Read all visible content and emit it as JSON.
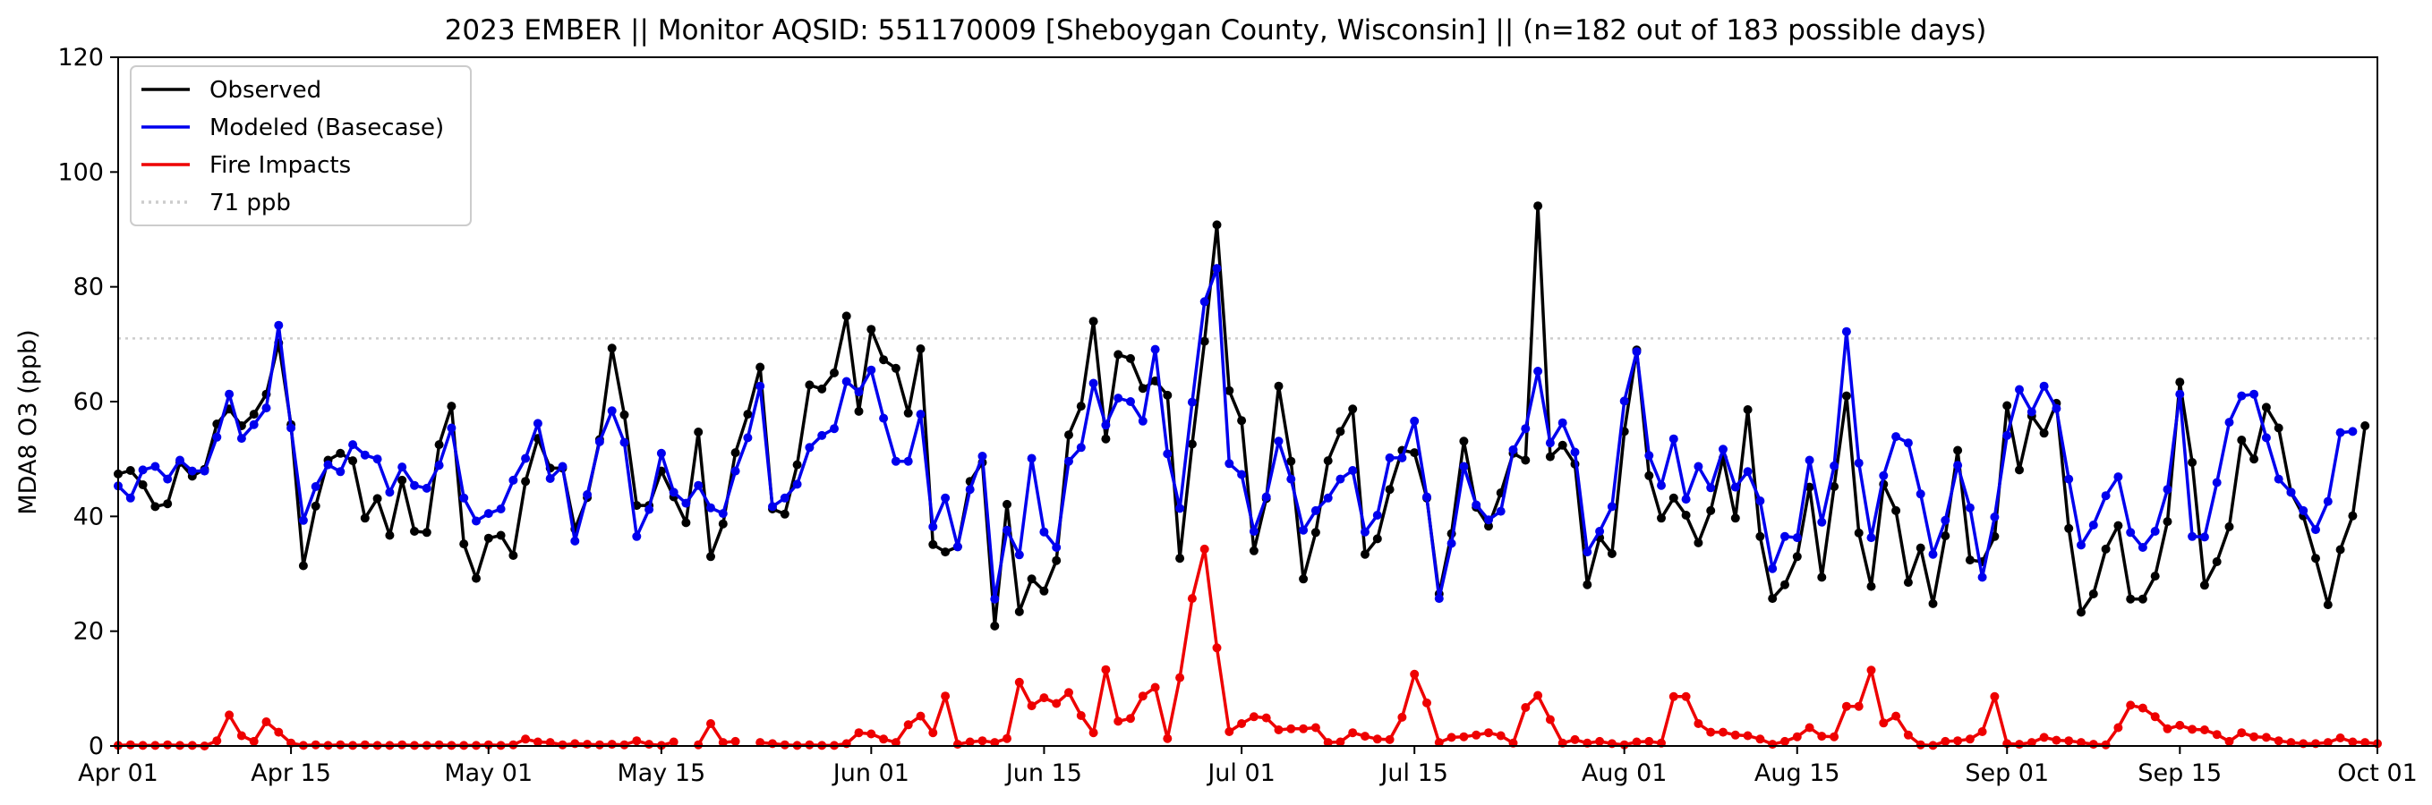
{
  "chart_data": {
    "type": "line",
    "title": "2023 EMBER || Monitor AQSID: 551170009 [Sheboygan County, Wisconsin] || (n=182 out of 183 possible days)",
    "xlabel": "",
    "ylabel": "MDA8 O3 (ppb)",
    "xlim": [
      0,
      183
    ],
    "ylim": [
      0,
      120
    ],
    "x_ticks": [
      {
        "day": 0,
        "label": "Apr 01"
      },
      {
        "day": 14,
        "label": "Apr 15"
      },
      {
        "day": 30,
        "label": "May 01"
      },
      {
        "day": 44,
        "label": "May 15"
      },
      {
        "day": 61,
        "label": "Jun 01"
      },
      {
        "day": 75,
        "label": "Jun 15"
      },
      {
        "day": 91,
        "label": "Jul 01"
      },
      {
        "day": 105,
        "label": "Jul 15"
      },
      {
        "day": 122,
        "label": "Aug 01"
      },
      {
        "day": 136,
        "label": "Aug 15"
      },
      {
        "day": 153,
        "label": "Sep 01"
      },
      {
        "day": 167,
        "label": "Sep 15"
      },
      {
        "day": 183,
        "label": "Oct 01"
      }
    ],
    "y_ticks": [
      0,
      20,
      40,
      60,
      80,
      100,
      120
    ],
    "legend_position": "top-left",
    "reference_line": {
      "name": "71 ppb",
      "value": 71,
      "color": "#cccccc",
      "style": "dotted"
    },
    "series": [
      {
        "name": "Observed",
        "color": "#000000",
        "gaps": [],
        "values": [
          47.4,
          48,
          45.5,
          41.7,
          42.2,
          49.4,
          47,
          48.2,
          56.1,
          58.7,
          55.8,
          57.8,
          61.3,
          70.2,
          56,
          31.4,
          41.8,
          49.8,
          51,
          49.7,
          39.7,
          43.1,
          36.7,
          46.3,
          37.4,
          37.2,
          52.5,
          59.2,
          35.2,
          29.2,
          36.2,
          36.7,
          33.2,
          46.1,
          53.6,
          48.4,
          48.4,
          37.8,
          43.3,
          53.4,
          69.3,
          57.7,
          41.9,
          41.9,
          47.9,
          43.4,
          38.9,
          54.7,
          33,
          38.7,
          51.1,
          57.8,
          66,
          41.3,
          40.4,
          49,
          62.9,
          62.2,
          65,
          74.9,
          58.3,
          72.6,
          67.3,
          65.8,
          58,
          69.2,
          35.1,
          33.8,
          34.7,
          46.1,
          49.4,
          20.9,
          42.1,
          23.4,
          29.1,
          27,
          32.3,
          54.2,
          59.2,
          74,
          53.5,
          68.2,
          67.5,
          62.3,
          63.6,
          61.1,
          32.7,
          52.6,
          70.5,
          90.8,
          61.9,
          56.7,
          34,
          43.1,
          62.7,
          49.6,
          29.1,
          37.2,
          49.7,
          54.8,
          58.7,
          33.4,
          36.1,
          44.7,
          51.5,
          51.1,
          43.2,
          26.5,
          37,
          53.1,
          41.6,
          38.3,
          44.1,
          51,
          49.8,
          94.1,
          50.4,
          52.4,
          49.1,
          28.1,
          36.3,
          33.5,
          54.8,
          69,
          47.1,
          39.7,
          43.2,
          40.2,
          35.4,
          41,
          50.2,
          39.7,
          58.6,
          36.5,
          25.7,
          28.1,
          33,
          45.1,
          29.4,
          45.2,
          61,
          37.1,
          27.8,
          45.6,
          41,
          28.5,
          34.5,
          24.8,
          36.6,
          51.5,
          32.4,
          32.1,
          36.5,
          59.3,
          48.1,
          57.5,
          54.5,
          59.7,
          37.9,
          23.3,
          26.5,
          34.3,
          38.4,
          25.6,
          25.6,
          29.6,
          39.1,
          63.4,
          49.4,
          28,
          32.1,
          38.2,
          53.3,
          50,
          59,
          55.4,
          44.2,
          40.1,
          32.7,
          24.6,
          34.2,
          40.1,
          55.8
        ]
      },
      {
        "name": "Modeled (Basecase)",
        "color": "#0000ee",
        "gaps": [],
        "values": [
          45.3,
          43.2,
          48.1,
          48.7,
          46.5,
          49.8,
          47.9,
          47.9,
          53.8,
          61.3,
          53.6,
          56,
          58.9,
          73.3,
          55.4,
          39.3,
          45.2,
          49,
          47.8,
          52.5,
          50.7,
          50,
          44.2,
          48.6,
          45.4,
          44.9,
          48.9,
          55.4,
          43.2,
          39.2,
          40.5,
          41.3,
          46.3,
          50.1,
          56.2,
          46.6,
          48.7,
          35.7,
          43.8,
          53,
          58.4,
          52.9,
          36.5,
          41.2,
          51,
          44.2,
          42.3,
          45.4,
          41.5,
          40.5,
          47.9,
          53.7,
          62.7,
          41.7,
          43.2,
          45.6,
          52,
          54.1,
          55.3,
          63.5,
          61.7,
          65.5,
          57.1,
          49.6,
          49.6,
          57.8,
          38.2,
          43.2,
          34.7,
          44.7,
          50.5,
          25.6,
          37.6,
          33.3,
          50.1,
          37.3,
          34.6,
          49.6,
          52,
          63.2,
          55.9,
          60.6,
          60,
          56.6,
          69.1,
          50.9,
          41.4,
          59.9,
          77.4,
          83.2,
          49.2,
          47.3,
          37.4,
          43.4,
          53.1,
          46.5,
          37.6,
          41,
          43.2,
          46.5,
          48,
          37.3,
          40.2,
          50.2,
          50.2,
          56.6,
          43.4,
          25.7,
          35.3,
          48.7,
          42,
          39.4,
          40.9,
          51.6,
          55.3,
          65.3,
          52.8,
          56.3,
          51.2,
          33.8,
          37.4,
          41.7,
          60.1,
          68.7,
          50.6,
          45.4,
          53.5,
          43,
          48.7,
          45,
          51.7,
          45.1,
          47.8,
          42.7,
          30.9,
          36.5,
          36.3,
          49.8,
          39,
          48.8,
          72.2,
          49.3,
          36.3,
          47.1,
          53.9,
          52.8,
          43.9,
          33.4,
          39.3,
          48.9,
          41.5,
          29.4,
          39.9,
          54.1,
          62.1,
          58.2,
          62.7,
          58.8,
          46.5,
          35,
          38.5,
          43.6,
          46.9,
          37.2,
          34.6,
          37.4,
          44.7,
          61.3,
          36.5,
          36.4,
          45.9,
          56.4,
          61,
          61.3,
          53.7,
          46.5,
          44.2,
          41,
          37.7,
          42.6,
          54.6,
          54.8
        ]
      },
      {
        "name": "Fire Impacts",
        "color": "#ee0000",
        "gaps": [
          46,
          51
        ],
        "values": [
          0.1,
          0.2,
          0.1,
          0.1,
          0.2,
          0.1,
          0.1,
          0,
          0.9,
          5.4,
          1.8,
          0.8,
          4.2,
          2.4,
          0.5,
          0.1,
          0.2,
          0.1,
          0.2,
          0.1,
          0.2,
          0.1,
          0.1,
          0.2,
          0.1,
          0.1,
          0.2,
          0.1,
          0.1,
          0.1,
          0.2,
          0.1,
          0.2,
          1.2,
          0.7,
          0.6,
          0.2,
          0.4,
          0.3,
          0.2,
          0.3,
          0.2,
          0.9,
          0.3,
          0.1,
          0.7,
          0.1,
          0.2,
          3.9,
          0.6,
          0.8,
          0.1,
          0.6,
          0.4,
          0.2,
          0.1,
          0.2,
          0.1,
          0.1,
          0.4,
          2.3,
          2.1,
          1.2,
          0.6,
          3.7,
          5.2,
          2.3,
          8.7,
          0.3,
          0.7,
          0.9,
          0.6,
          1.3,
          11.1,
          7,
          8.4,
          7.4,
          9.3,
          5.3,
          2.3,
          13.3,
          4.3,
          4.8,
          8.7,
          10.2,
          1.3,
          11.9,
          25.7,
          34.3,
          17.1,
          2.5,
          3.9,
          5.1,
          4.9,
          2.8,
          3,
          3,
          3.2,
          0.6,
          0.7,
          2.3,
          1.7,
          1.2,
          1.1,
          5,
          12.5,
          7.5,
          0.6,
          1.5,
          1.6,
          1.9,
          2.3,
          1.8,
          0.5,
          6.7,
          8.8,
          4.6,
          0.5,
          1.1,
          0.5,
          0.8,
          0.4,
          0.2,
          0.7,
          0.8,
          0.5,
          8.6,
          8.6,
          3.9,
          2.4,
          2.4,
          1.9,
          1.8,
          1.2,
          0.3,
          0.8,
          1.6,
          3.2,
          1.7,
          1.6,
          6.9,
          6.9,
          13.2,
          4,
          5.2,
          1.9,
          0.2,
          0.1,
          0.8,
          0.9,
          1.2,
          2.5,
          8.6,
          0.4,
          0.3,
          0.6,
          1.5,
          1,
          0.9,
          0.6,
          0.3,
          0.2,
          3.2,
          7.1,
          6.6,
          5.1,
          3,
          3.6,
          2.9,
          2.8,
          2,
          0.8,
          2.3,
          1.6,
          1.5,
          0.9,
          0.6,
          0.4,
          0.4,
          0.6,
          1.4,
          0.7,
          0.6,
          0.4
        ]
      }
    ]
  }
}
